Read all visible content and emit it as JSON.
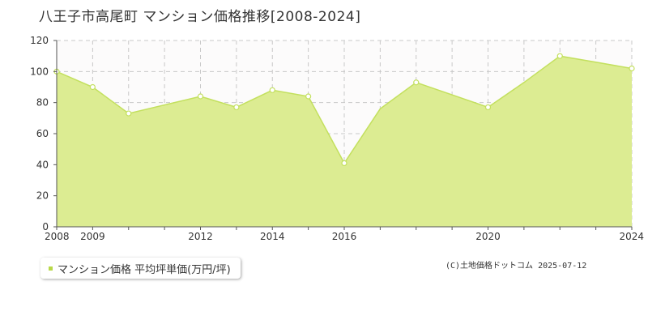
{
  "colors": {
    "fill": "#dcec92",
    "line": "#c3e05e",
    "point_fill": "#ffffff",
    "grid": "#c8c8c8",
    "axis": "#555555",
    "plot_bg": "#fcfbfb",
    "legend_swatch": "#b8d848"
  },
  "chart_data": {
    "type": "area",
    "title": "八王子市高尾町 マンション価格推移[2008-2024]",
    "xlabel": "",
    "ylabel": "",
    "xlim": [
      2008,
      2024
    ],
    "ylim": [
      0,
      120
    ],
    "x_ticks": [
      2008,
      2009,
      2010,
      2011,
      2012,
      2013,
      2014,
      2015,
      2016,
      2017,
      2018,
      2019,
      2020,
      2021,
      2022,
      2023,
      2024
    ],
    "x_tick_labels": [
      "2008",
      "2009",
      "2012",
      "2014",
      "2016",
      "2020",
      "2024"
    ],
    "x_tick_label_years": [
      2008,
      2009,
      2012,
      2014,
      2016,
      2020,
      2024
    ],
    "y_ticks": [
      0,
      20,
      40,
      60,
      80,
      100,
      120
    ],
    "y_tick_labels": [
      "0",
      "20",
      "40",
      "60",
      "80",
      "100",
      "120"
    ],
    "grid": true,
    "series": [
      {
        "name": "マンション価格 平均坪単価(万円/坪)",
        "x": [
          2008,
          2009,
          2010,
          2012,
          2013,
          2014,
          2015,
          2016,
          2017,
          2018,
          2019,
          2020,
          2021,
          2022,
          2023,
          2024
        ],
        "y": [
          100,
          90,
          73,
          84,
          77,
          88,
          84,
          41,
          76,
          93,
          85,
          77,
          93,
          110,
          106,
          102
        ],
        "marked_x": [
          2008,
          2009,
          2010,
          2012,
          2013,
          2014,
          2015,
          2016,
          2018,
          2020,
          2022,
          2024
        ]
      }
    ],
    "legend": {
      "position": "bottom-left",
      "label": "マンション価格 平均坪単価(万円/坪)"
    }
  },
  "source_note": "(C)土地価格ドットコム 2025-07-12"
}
